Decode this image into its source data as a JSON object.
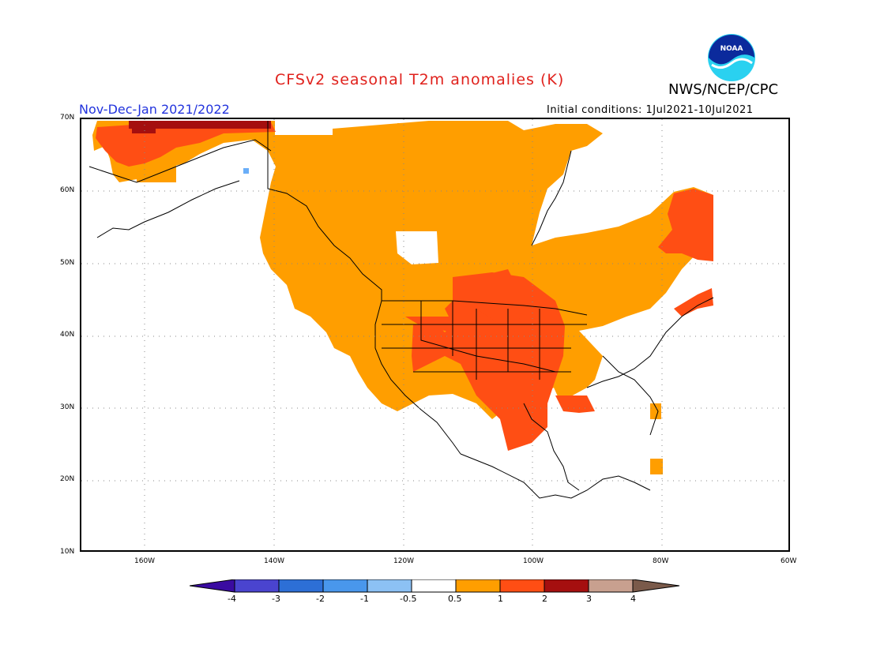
{
  "header": {
    "title": "CFSv2 seasonal T2m anomalies (K)",
    "agency": "NWS/NCEP/CPC",
    "season": "Nov-Dec-Jan 2021/2022",
    "initial_conditions": "Initial conditions: 1Jul2021-10Jul2021",
    "logo_text": "NOAA"
  },
  "axes": {
    "lat_labels": [
      "70N",
      "60N",
      "50N",
      "40N",
      "30N",
      "20N",
      "10N"
    ],
    "lon_labels": [
      "160W",
      "140W",
      "120W",
      "100W",
      "80W",
      "60W"
    ]
  },
  "colorbar": {
    "labels": [
      "-4",
      "-3",
      "-2",
      "-1",
      "-0.5",
      "0.5",
      "1",
      "2",
      "3",
      "4"
    ],
    "colors": [
      "#3a0ba1",
      "#4a44cf",
      "#2d6fd6",
      "#4997ec",
      "#8cc1f4",
      "#ffffff",
      "#ff9e00",
      "#ff4e14",
      "#a50f0f",
      "#c8a08f",
      "#7a5a4a"
    ]
  },
  "colors": {
    "anom_05_1": "#ff9e00",
    "anom_1_2": "#ff4e14",
    "anom_2_3": "#a50f0f",
    "anom_neg": "#6aaef8",
    "title": "#e0211c",
    "season": "#2233dd"
  }
}
